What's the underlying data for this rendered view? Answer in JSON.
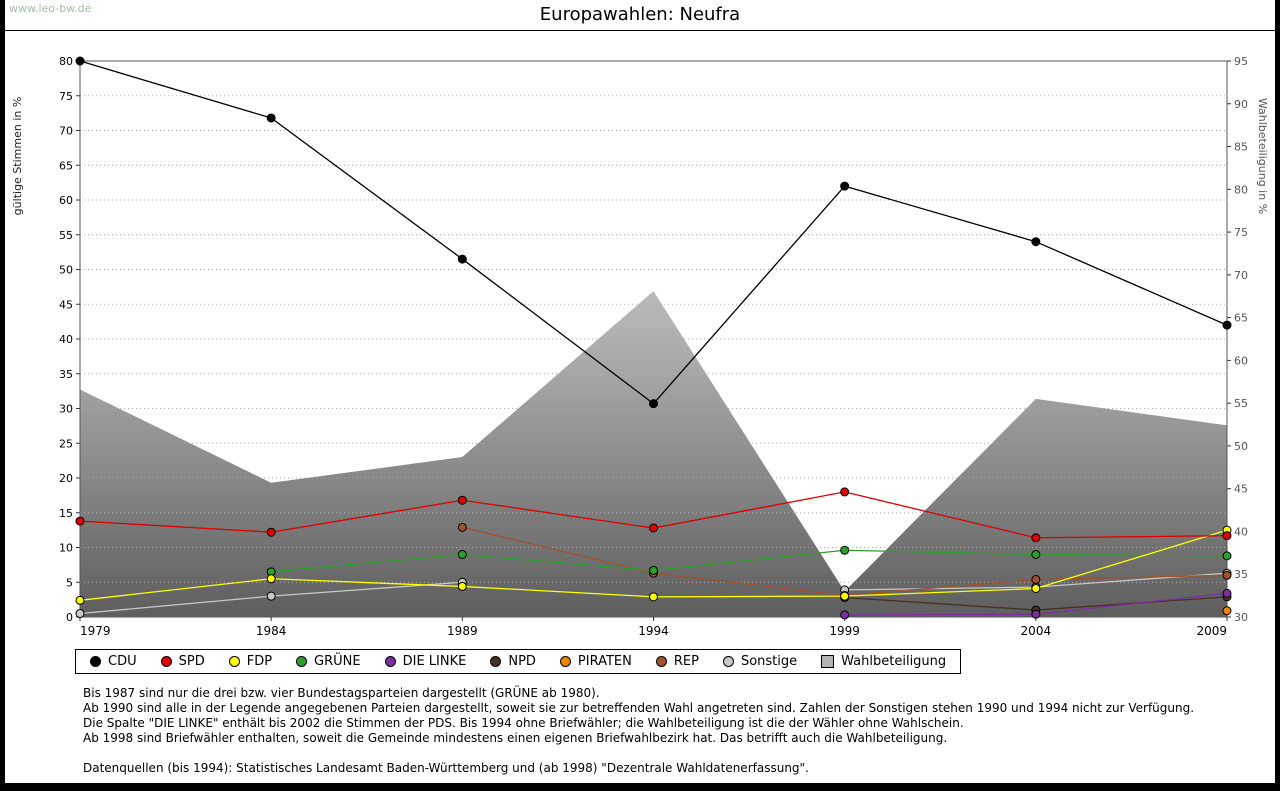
{
  "header": {
    "watermark": "www.leo-bw.de",
    "title": "Europawahlen: Neufra"
  },
  "chart_data": {
    "type": "line",
    "title": "Europawahlen: Neufra",
    "x": [
      1979,
      1984,
      1989,
      1994,
      1999,
      2004,
      2009
    ],
    "left_axis": {
      "label": "gültige Stimmen in %",
      "min": 0,
      "max": 80,
      "step": 5
    },
    "right_axis": {
      "label": "Wahlbeteiligung in %",
      "min": 30,
      "max": 95,
      "step": 5
    },
    "grid": true,
    "legend_position": "bottom",
    "series": [
      {
        "name": "CDU",
        "color": "#000000",
        "axis": "left",
        "type": "line",
        "values": [
          80,
          71.8,
          51.5,
          30.7,
          62,
          54,
          42
        ]
      },
      {
        "name": "SPD",
        "color": "#dc0000",
        "axis": "left",
        "type": "line",
        "values": [
          13.8,
          12.2,
          16.8,
          12.8,
          18,
          11.4,
          11.7
        ]
      },
      {
        "name": "FDP",
        "color": "#ffff00",
        "axis": "left",
        "type": "line",
        "values": [
          2.4,
          5.5,
          4.4,
          2.9,
          3,
          4.1,
          12.5
        ]
      },
      {
        "name": "GRÜNE",
        "color": "#2ca02c",
        "axis": "left",
        "type": "line",
        "values": [
          null,
          6.5,
          9,
          6.7,
          9.6,
          9,
          8.8
        ]
      },
      {
        "name": "DIE LINKE",
        "color": "#7d2f9f",
        "axis": "left",
        "type": "line",
        "values": [
          null,
          null,
          null,
          null,
          0.3,
          0.4,
          3.4
        ]
      },
      {
        "name": "NPD",
        "color": "#443322",
        "axis": "left",
        "type": "line",
        "values": [
          null,
          null,
          null,
          null,
          2.8,
          1,
          2.9
        ]
      },
      {
        "name": "PIRATEN",
        "color": "#ef8200",
        "axis": "left",
        "type": "line",
        "values": [
          null,
          null,
          null,
          null,
          null,
          null,
          0.9
        ]
      },
      {
        "name": "REP",
        "color": "#a0522d",
        "axis": "left",
        "type": "line",
        "values": [
          null,
          null,
          12.9,
          6.3,
          3.1,
          5.4,
          6
        ]
      },
      {
        "name": "Sonstige",
        "color": "#c8c8c8",
        "axis": "left",
        "type": "line",
        "values": [
          0.5,
          3,
          5,
          null,
          3.9,
          4.3,
          6.3
        ]
      },
      {
        "name": "Wahlbeteiligung",
        "color": "#b4b4b4",
        "axis": "right",
        "type": "area",
        "values": [
          56.6,
          45.7,
          48.7,
          68.1,
          33,
          55.5,
          52.4
        ]
      }
    ]
  },
  "footnotes": {
    "lines": [
      "Bis 1987 sind nur die drei bzw. vier Bundestagsparteien dargestellt (GRÜNE ab 1980).",
      "Ab 1990 sind alle in der Legende angegebenen Parteien dargestellt, soweit sie zur betreffenden Wahl angetreten sind. Zahlen der Sonstigen stehen 1990 und 1994 nicht zur Verfügung.",
      "Die Spalte \"DIE LINKE\" enthält bis 2002 die Stimmen der PDS. Bis 1994 ohne Briefwähler; die Wahlbeteiligung ist die der Wähler ohne Wahlschein.",
      "Ab 1998 sind Briefwähler enthalten, soweit die Gemeinde mindestens einen eigenen Briefwahlbezirk hat. Das betrifft auch die Wahlbeteiligung.",
      "",
      "Datenquellen (bis 1994): Statistisches Landesamt Baden-Württemberg und (ab 1998) \"Dezentrale Wahldatenerfassung\"."
    ]
  }
}
